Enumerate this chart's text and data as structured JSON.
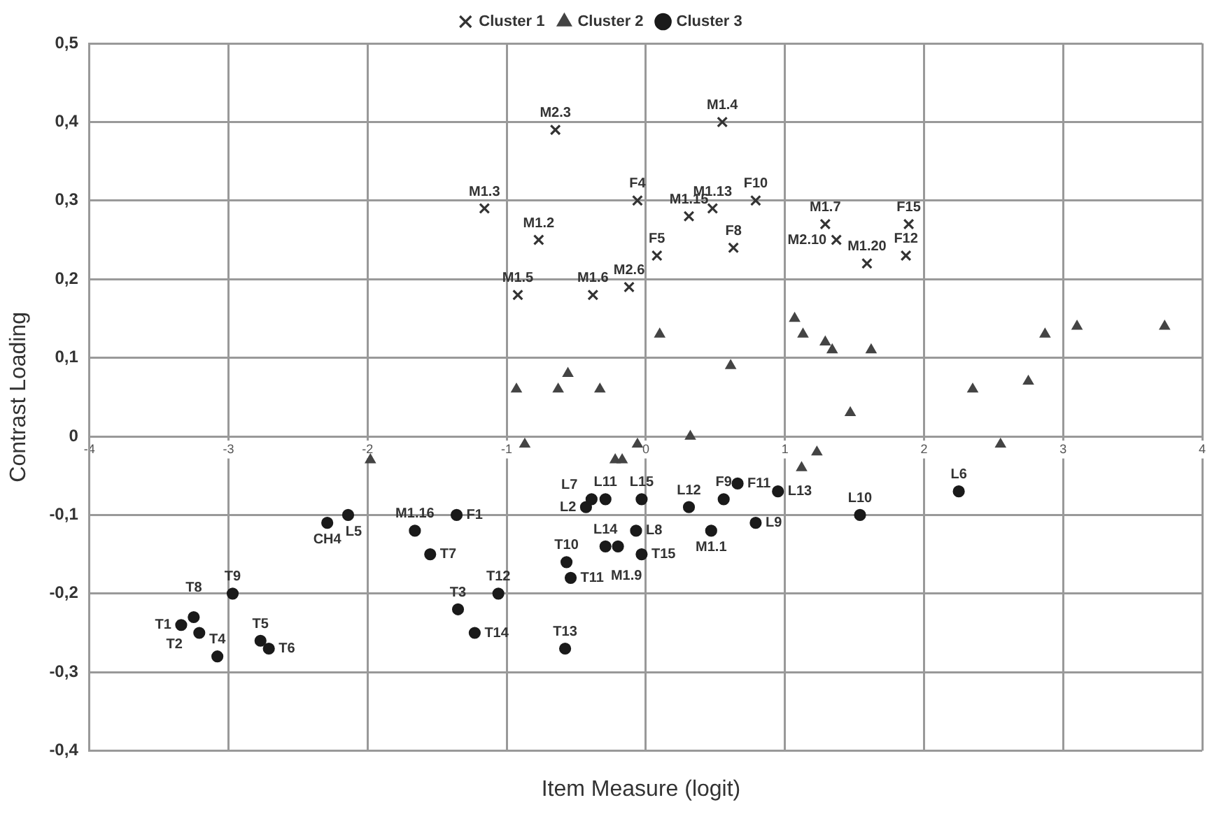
{
  "chart_data": {
    "type": "scatter",
    "xlabel": "Item Measure (logit)",
    "ylabel": "Contrast Loading",
    "xlim": [
      -4,
      4
    ],
    "xticks": [
      -4,
      -3,
      -2,
      -1,
      0,
      1,
      2,
      3,
      4
    ],
    "ylim": [
      -0.4,
      0.5
    ],
    "yticks": [
      {
        "value": -0.4,
        "label": "-0,4"
      },
      {
        "value": -0.3,
        "label": "-0,3"
      },
      {
        "value": -0.2,
        "label": "-0,2"
      },
      {
        "value": -0.1,
        "label": "-0,1"
      },
      {
        "value": 0,
        "label": "0"
      },
      {
        "value": 0.1,
        "label": "0,1"
      },
      {
        "value": 0.2,
        "label": "0,2"
      },
      {
        "value": 0.3,
        "label": "0,3"
      },
      {
        "value": 0.4,
        "label": "0,4"
      },
      {
        "value": 0.5,
        "label": "0,5"
      }
    ],
    "grid": true,
    "legend": "top",
    "series": [
      {
        "name": "Cluster 1",
        "color": "#333333",
        "marker": "cross",
        "x": [
          -0.65,
          0.55,
          -1.16,
          -0.06,
          0.31,
          0.48,
          0.79,
          -0.77,
          0.08,
          0.63,
          -0.92,
          -0.38,
          -0.12,
          1.29,
          1.37,
          1.59,
          1.89,
          1.87
        ],
        "values": [
          0.39,
          0.4,
          0.29,
          0.3,
          0.28,
          0.29,
          0.3,
          0.25,
          0.23,
          0.24,
          0.18,
          0.18,
          0.19,
          0.27,
          0.25,
          0.22,
          0.27,
          0.23
        ]
      },
      {
        "name": "Cluster 2",
        "color": "#444444",
        "marker": "triangle",
        "x": [
          0.1,
          0.61,
          1.07,
          1.13,
          1.29,
          1.34,
          1.62,
          1.47,
          2.35,
          2.75,
          2.87,
          3.1,
          3.73,
          2.55,
          1.23,
          1.12,
          -0.93,
          -0.56,
          -0.63,
          -0.33,
          -0.87,
          -0.22,
          -0.17,
          -0.06,
          0.32,
          -1.98
        ],
        "values": [
          0.13,
          0.09,
          0.15,
          0.13,
          0.12,
          0.11,
          0.11,
          0.03,
          0.06,
          0.07,
          0.13,
          0.14,
          0.14,
          -0.01,
          -0.02,
          -0.04,
          0.06,
          0.08,
          0.06,
          0.06,
          -0.01,
          -0.03,
          -0.03,
          -0.01,
          0.0,
          -0.03
        ]
      },
      {
        "name": "Cluster 3",
        "color": "#1a1a1a",
        "marker": "circle",
        "x": [
          -2.29,
          -2.14,
          -2.97,
          -3.25,
          -3.34,
          -3.21,
          -3.08,
          -2.77,
          -2.71,
          -1.66,
          -1.55,
          -1.36,
          -1.06,
          -1.35,
          -1.23,
          -0.58,
          -0.57,
          -0.54,
          -0.43,
          -0.39,
          -0.29,
          -0.03,
          -0.07,
          -0.29,
          -0.2,
          -0.03,
          0.31,
          0.56,
          0.47,
          0.66,
          0.95,
          0.79,
          1.54,
          2.25
        ],
        "values": [
          -0.11,
          -0.1,
          -0.2,
          -0.23,
          -0.24,
          -0.25,
          -0.28,
          -0.26,
          -0.27,
          -0.12,
          -0.15,
          -0.1,
          -0.2,
          -0.22,
          -0.25,
          -0.27,
          -0.16,
          -0.18,
          -0.09,
          -0.08,
          -0.08,
          -0.08,
          -0.12,
          -0.14,
          -0.14,
          -0.15,
          -0.09,
          -0.08,
          -0.12,
          -0.06,
          -0.07,
          -0.11,
          -0.1,
          -0.07
        ]
      }
    ],
    "annotations": [
      {
        "text": "M2.3",
        "x": -0.65,
        "y": 0.39
      },
      {
        "text": "M1.4",
        "x": 0.55,
        "y": 0.4
      },
      {
        "text": "M1.3",
        "x": -1.16,
        "y": 0.29
      },
      {
        "text": "F4",
        "x": -0.06,
        "y": 0.3
      },
      {
        "text": "M1.15",
        "x": 0.31,
        "y": 0.28
      },
      {
        "text": "M1.13",
        "x": 0.48,
        "y": 0.29
      },
      {
        "text": "F10",
        "x": 0.79,
        "y": 0.3
      },
      {
        "text": "M1.2",
        "x": -0.77,
        "y": 0.25
      },
      {
        "text": "F5",
        "x": 0.08,
        "y": 0.23
      },
      {
        "text": "F8",
        "x": 0.63,
        "y": 0.24
      },
      {
        "text": "M1.5",
        "x": -0.92,
        "y": 0.18
      },
      {
        "text": "M1.6",
        "x": -0.38,
        "y": 0.18
      },
      {
        "text": "M2.6",
        "x": -0.12,
        "y": 0.19
      },
      {
        "text": "M1.7",
        "x": 1.29,
        "y": 0.27
      },
      {
        "text": "M2.10",
        "x": 1.37,
        "y": 0.25
      },
      {
        "text": "M1.20",
        "x": 1.59,
        "y": 0.22
      },
      {
        "text": "F15",
        "x": 1.89,
        "y": 0.27
      },
      {
        "text": "F12",
        "x": 1.87,
        "y": 0.23
      },
      {
        "text": "CH4",
        "x": -2.29,
        "y": -0.11
      },
      {
        "text": "L5",
        "x": -2.14,
        "y": -0.1
      },
      {
        "text": "T9",
        "x": -2.97,
        "y": -0.2
      },
      {
        "text": "T8",
        "x": -3.25,
        "y": -0.23
      },
      {
        "text": "T1",
        "x": -3.34,
        "y": -0.24
      },
      {
        "text": "T2",
        "x": -3.21,
        "y": -0.25
      },
      {
        "text": "T4",
        "x": -3.08,
        "y": -0.28
      },
      {
        "text": "T5",
        "x": -2.77,
        "y": -0.26
      },
      {
        "text": "T6",
        "x": -2.71,
        "y": -0.27
      },
      {
        "text": "M1.16",
        "x": -1.66,
        "y": -0.12
      },
      {
        "text": "T7",
        "x": -1.55,
        "y": -0.15
      },
      {
        "text": "F1",
        "x": -1.36,
        "y": -0.1
      },
      {
        "text": "T12",
        "x": -1.06,
        "y": -0.2
      },
      {
        "text": "T3",
        "x": -1.35,
        "y": -0.22
      },
      {
        "text": "T14",
        "x": -1.23,
        "y": -0.25
      },
      {
        "text": "T13",
        "x": -0.58,
        "y": -0.27
      },
      {
        "text": "T10",
        "x": -0.57,
        "y": -0.16
      },
      {
        "text": "T11",
        "x": -0.54,
        "y": -0.18
      },
      {
        "text": "L2",
        "x": -0.43,
        "y": -0.09
      },
      {
        "text": "L7",
        "x": -0.39,
        "y": -0.08
      },
      {
        "text": "L11",
        "x": -0.29,
        "y": -0.08
      },
      {
        "text": "L15",
        "x": -0.03,
        "y": -0.08
      },
      {
        "text": "L8",
        "x": -0.07,
        "y": -0.12
      },
      {
        "text": "L14",
        "x": -0.29,
        "y": -0.14
      },
      {
        "text": "M1.9",
        "x": -0.2,
        "y": -0.14
      },
      {
        "text": "T15",
        "x": -0.03,
        "y": -0.15
      },
      {
        "text": "L12",
        "x": 0.31,
        "y": -0.09
      },
      {
        "text": "F9",
        "x": 0.56,
        "y": -0.08
      },
      {
        "text": "M1.1",
        "x": 0.47,
        "y": -0.12
      },
      {
        "text": "F11",
        "x": 0.66,
        "y": -0.06
      },
      {
        "text": "L13",
        "x": 0.95,
        "y": -0.07
      },
      {
        "text": "L9",
        "x": 0.79,
        "y": -0.11
      },
      {
        "text": "L10",
        "x": 1.54,
        "y": -0.1
      },
      {
        "text": "L6",
        "x": 2.25,
        "y": -0.07
      }
    ]
  }
}
